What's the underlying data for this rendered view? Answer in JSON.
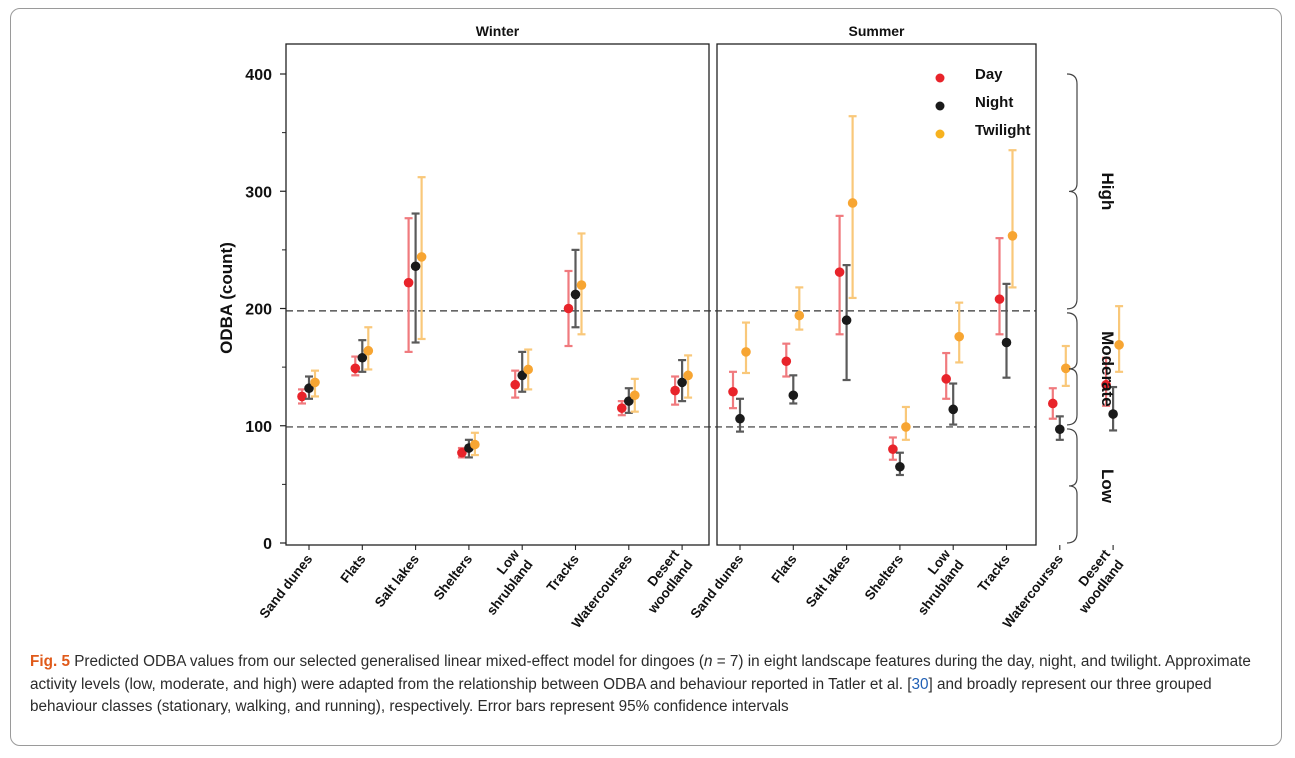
{
  "chart_data": {
    "type": "scatter",
    "ylabel": "ODBA (count)",
    "ylim": [
      0,
      400
    ],
    "yticks": [
      "0",
      "100",
      "200",
      "300",
      "400"
    ],
    "categories": [
      "Sand dunes",
      "Flats",
      "Salt lakes",
      "Shelters",
      "Low\nshrubland",
      "Tracks",
      "Watercourses",
      "Desert\nwoodland"
    ],
    "reference_lines": [
      99,
      198
    ],
    "legend_position": "top-right (Summer panel)",
    "series_colors": {
      "Day": "#e8232a",
      "Night": "#1a1a1a",
      "Twilight": "#f7b21e"
    },
    "error_bar_colors": {
      "Day": "#f07a7e",
      "Night": "#5a5a5a",
      "Twilight": "#f9c87a"
    },
    "point_colors": {
      "Day": "#e8232a",
      "Night": "#1a1a1a",
      "Twilight": "#f7a532"
    },
    "panels": [
      {
        "title": "Winter",
        "series": [
          {
            "name": "Day",
            "values": [
              125,
              149,
              222,
              77,
              135,
              200,
              115,
              130
            ],
            "lower": [
              119,
              143,
              163,
              73,
              124,
              168,
              109,
              118
            ],
            "upper": [
              131,
              159,
              277,
              81,
              147,
              232,
              121,
              142
            ]
          },
          {
            "name": "Night",
            "values": [
              132,
              158,
              236,
              81,
              143,
              212,
              121,
              137
            ],
            "lower": [
              123,
              146,
              171,
              73,
              129,
              184,
              111,
              121
            ],
            "upper": [
              142,
              173,
              281,
              88,
              163,
              250,
              132,
              156
            ]
          },
          {
            "name": "Twilight",
            "values": [
              137,
              164,
              244,
              84,
              148,
              220,
              126,
              143
            ],
            "lower": [
              125,
              148,
              174,
              75,
              131,
              178,
              112,
              124
            ],
            "upper": [
              147,
              184,
              312,
              94,
              165,
              264,
              140,
              160
            ]
          }
        ]
      },
      {
        "title": "Summer",
        "series": [
          {
            "name": "Day",
            "values": [
              129,
              155,
              231,
              80,
              140,
              208,
              119,
              135
            ],
            "lower": [
              115,
              142,
              178,
              71,
              123,
              178,
              106,
              117
            ],
            "upper": [
              146,
              170,
              279,
              90,
              162,
              260,
              132,
              158
            ]
          },
          {
            "name": "Night",
            "values": [
              106,
              126,
              190,
              65,
              114,
              171,
              97,
              110
            ],
            "lower": [
              95,
              119,
              139,
              58,
              101,
              141,
              88,
              96
            ],
            "upper": [
              123,
              143,
              237,
              77,
              136,
              221,
              108,
              133
            ]
          },
          {
            "name": "Twilight",
            "values": [
              163,
              194,
              290,
              99,
              176,
              262,
              149,
              169
            ],
            "lower": [
              145,
              182,
              209,
              88,
              154,
              218,
              134,
              146
            ],
            "upper": [
              188,
              218,
              364,
              116,
              205,
              335,
              168,
              202
            ]
          }
        ]
      }
    ],
    "activity_levels": [
      {
        "label": "Low",
        "from": 0,
        "to": 99
      },
      {
        "label": "Moderate",
        "from": 99,
        "to": 198
      },
      {
        "label": "High",
        "from": 198,
        "to": 400
      }
    ]
  },
  "caption": {
    "fig_label": "Fig. 5",
    "part1": " Predicted ODBA values from our selected generalised linear mixed-effect model for dingoes (",
    "n_italic": "n",
    "part2": " = 7) in eight landscape features during the day, night, and twilight. Approximate activity levels (low, moderate, and high) were adapted from the relationship between ODBA and behaviour reported in Tatler et al. [",
    "ref": "30",
    "part3": "] and broadly represent our three grouped behaviour classes (stationary, walking, and running), respectively. Error bars represent 95% confidence intervals"
  }
}
